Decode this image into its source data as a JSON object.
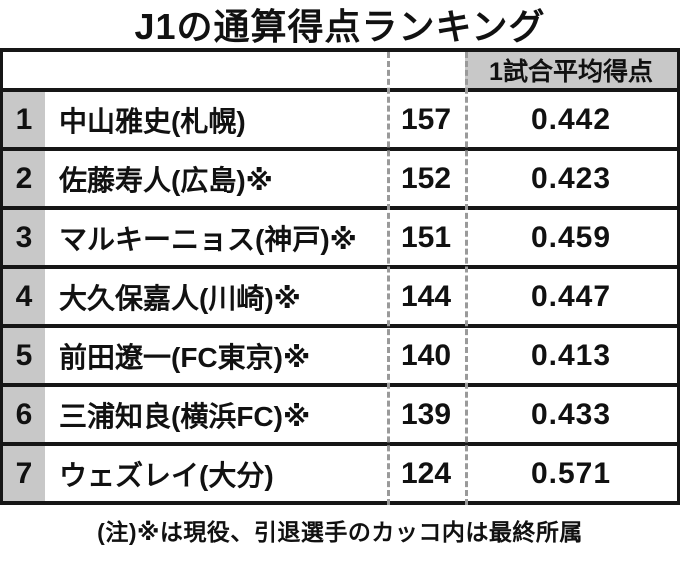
{
  "chart_data": {
    "type": "table",
    "title": "J1の通算得点ランキング",
    "avg_header": "1試合平均得点",
    "rows": [
      {
        "rank": "1",
        "name": "中山雅史(札幌)",
        "goals": "157",
        "avg": "0.442"
      },
      {
        "rank": "2",
        "name": "佐藤寿人(広島)※",
        "goals": "152",
        "avg": "0.423"
      },
      {
        "rank": "3",
        "name": "マルキーニョス(神戸)※",
        "goals": "151",
        "avg": "0.459"
      },
      {
        "rank": "4",
        "name": "大久保嘉人(川崎)※",
        "goals": "144",
        "avg": "0.447"
      },
      {
        "rank": "5",
        "name": "前田遼一(FC東京)※",
        "goals": "140",
        "avg": "0.413"
      },
      {
        "rank": "6",
        "name": "三浦知良(横浜FC)※",
        "goals": "139",
        "avg": "0.433"
      },
      {
        "rank": "7",
        "name": "ウェズレイ(大分)",
        "goals": "124",
        "avg": "0.571"
      }
    ],
    "footnote": "(注)※は現役、引退選手のカッコ内は最終所属"
  },
  "colors": {
    "cell_gray": "#c8c8c8",
    "border_black": "#161616",
    "dash_gray": "#9a9a9a"
  }
}
